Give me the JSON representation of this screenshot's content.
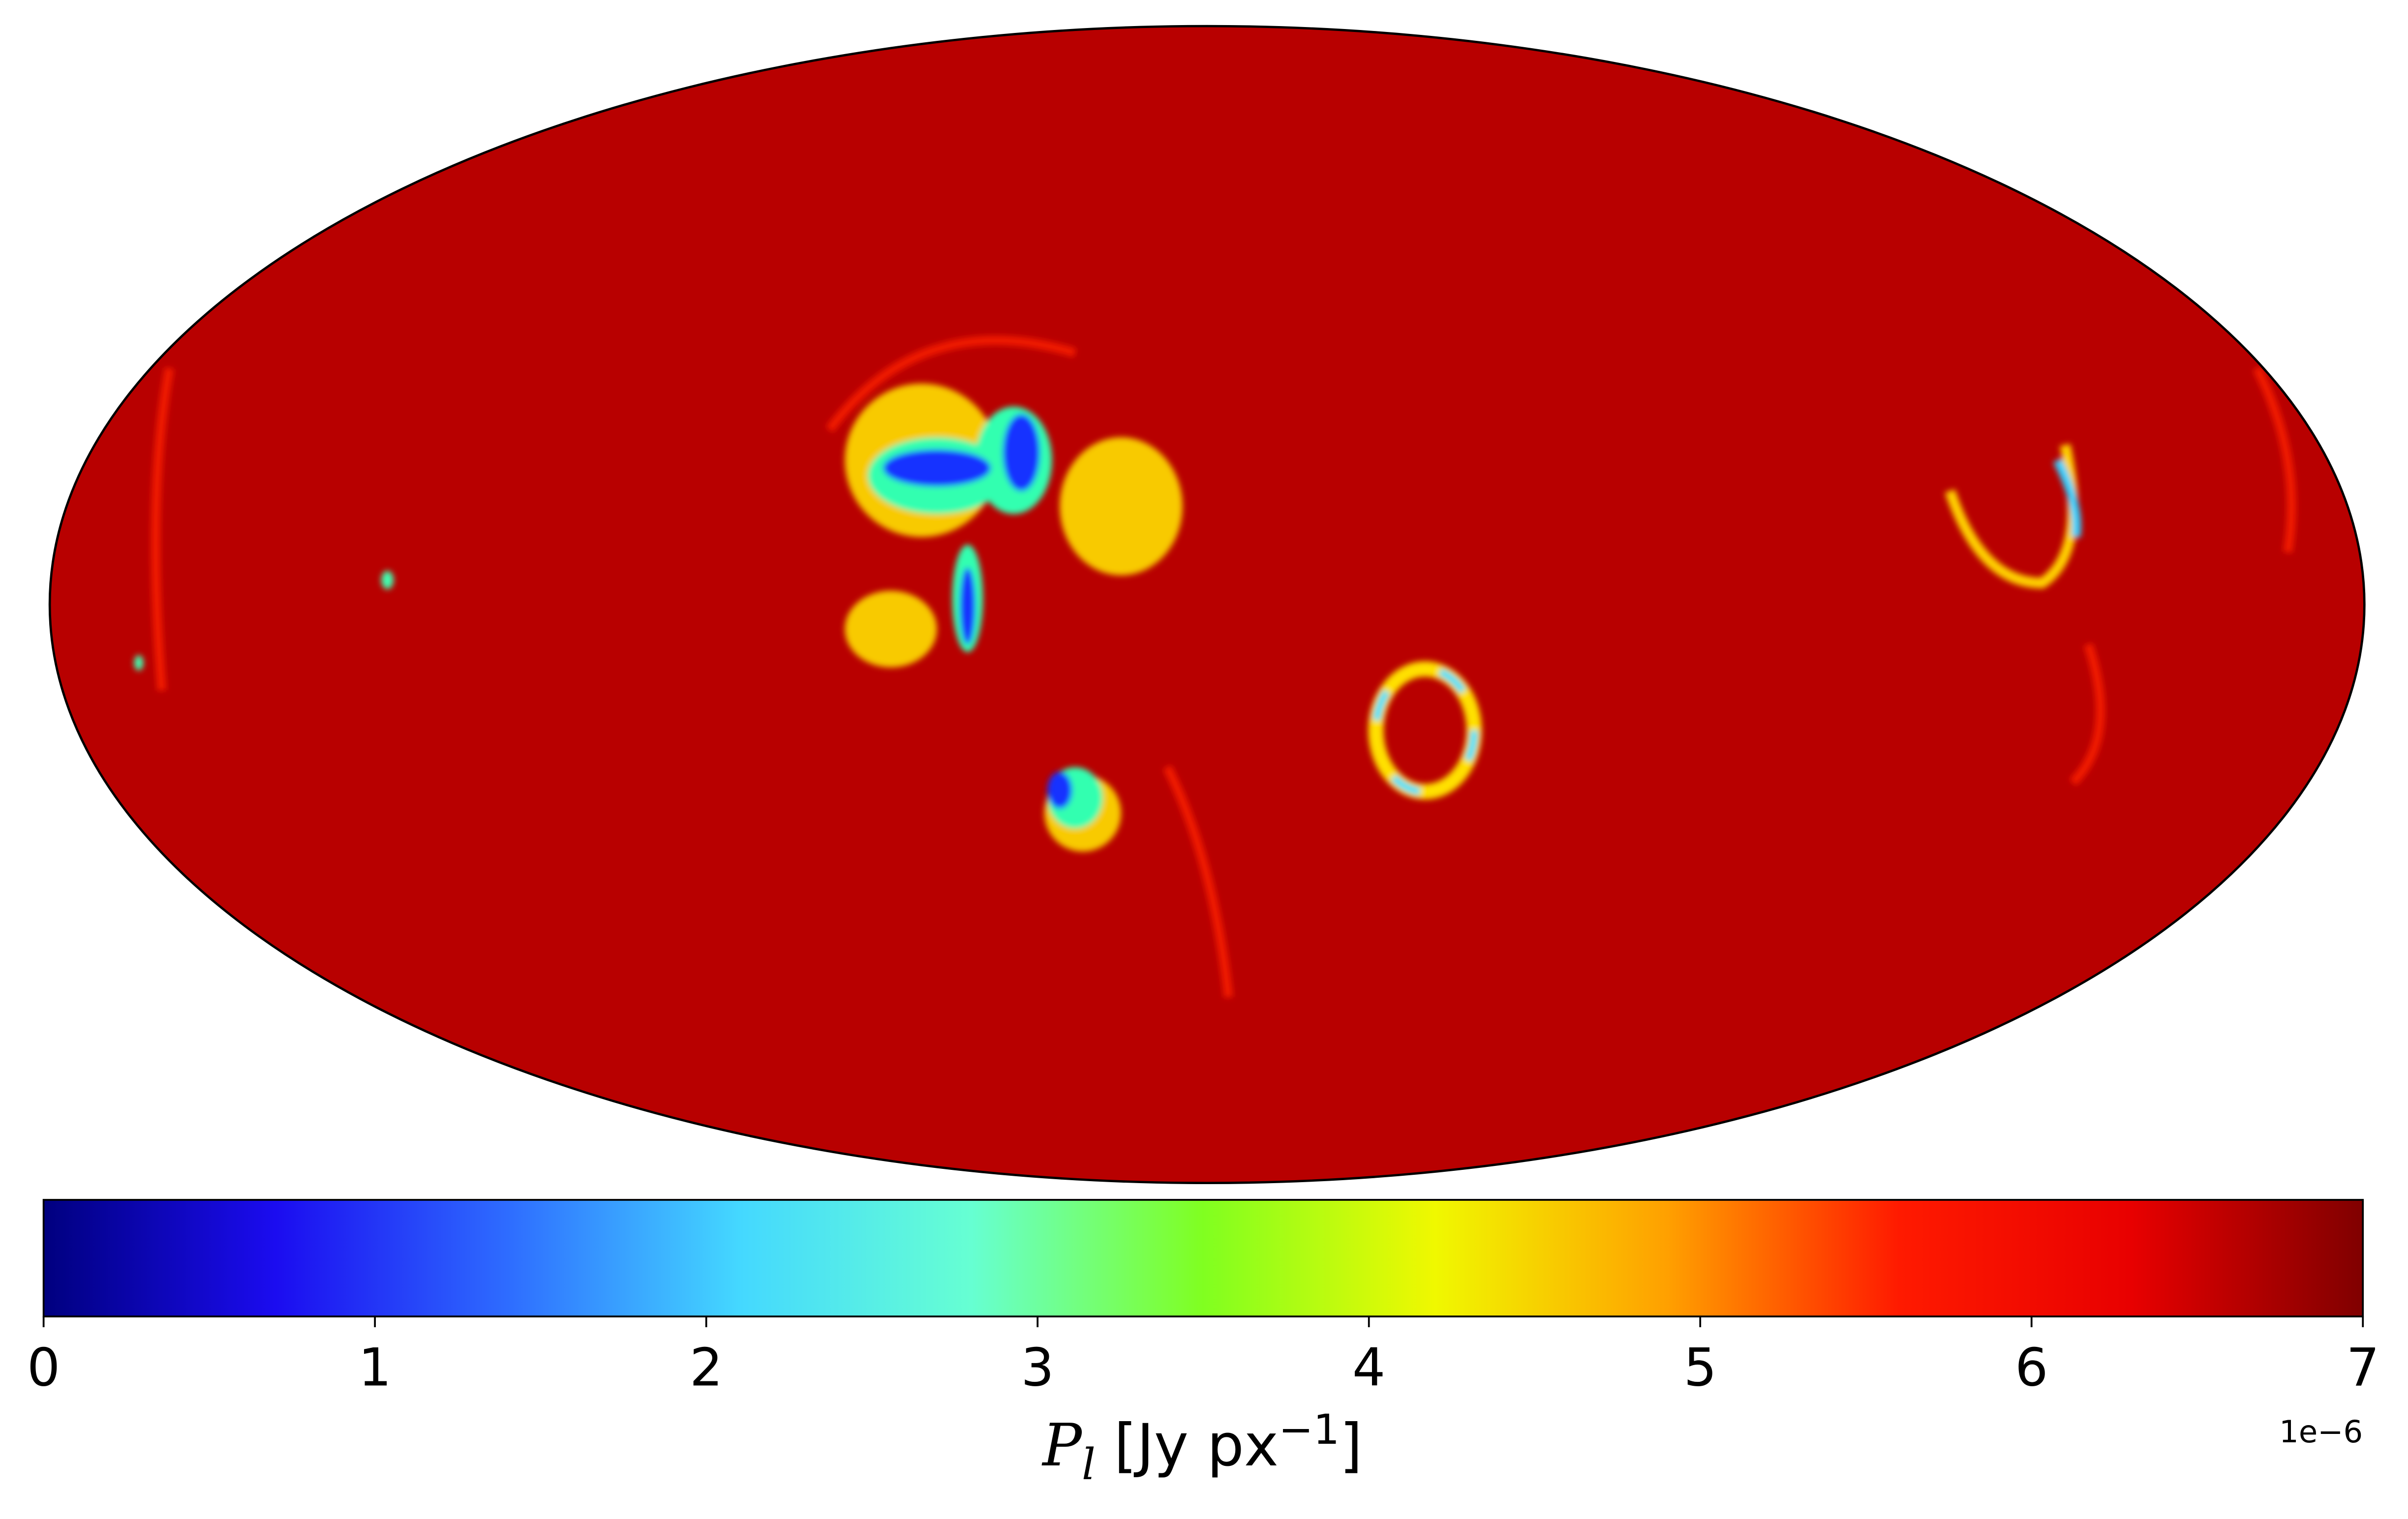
{
  "chart_data": {
    "type": "mollweide-map",
    "map_color": "#b80000",
    "colormap": [
      "#00007f",
      "#1b0cf0",
      "#2e6cff",
      "#44d8ff",
      "#66ffd2",
      "#80ff20",
      "#f0f800",
      "#ffa000",
      "#ff1a00",
      "#e80000",
      "#800000"
    ],
    "clim": [
      0,
      7
    ],
    "cticks": [
      0,
      1,
      2,
      3,
      4,
      5,
      6,
      7
    ],
    "colorbar_label": {
      "symbol": "P",
      "subscript": "l",
      "unit": " [Jy px",
      "exponent": "−1",
      "close": "]"
    },
    "offset_text": "1e−6"
  }
}
